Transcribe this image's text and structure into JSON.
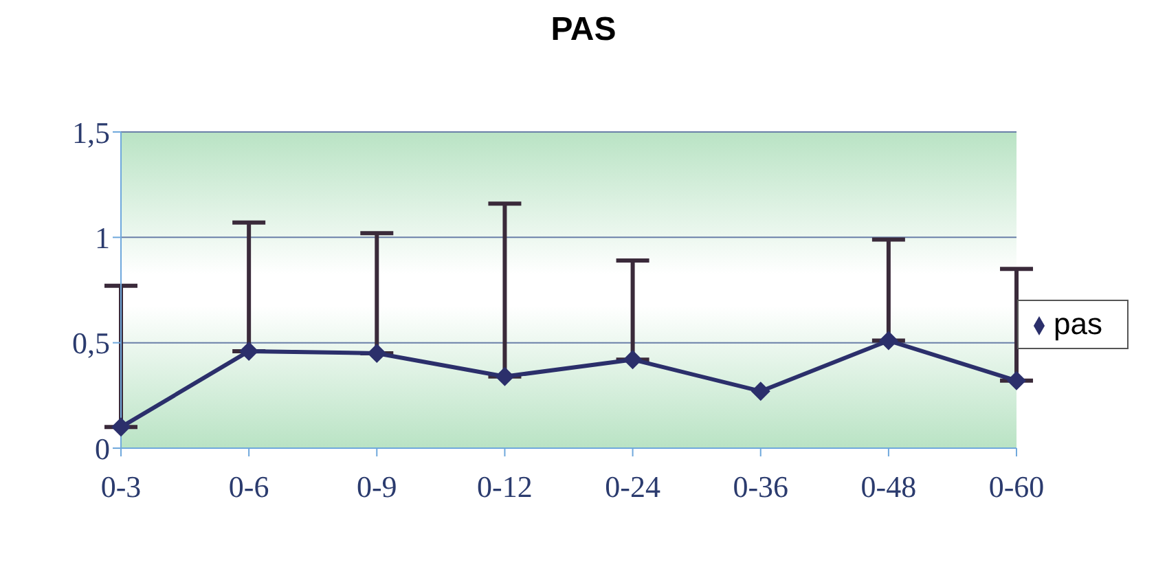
{
  "chart_data": {
    "type": "line",
    "title": "PAS",
    "categories": [
      "0-3",
      "0-6",
      "0-9",
      "0-12",
      "0-24",
      "0-36",
      "0-48",
      "0-60"
    ],
    "series": [
      {
        "name": "pas",
        "color": "#2b2f6b",
        "values": [
          0.1,
          0.46,
          0.45,
          0.34,
          0.42,
          0.27,
          0.51,
          0.32
        ],
        "errors": [
          [
            0.1,
            0.77
          ],
          [
            0.46,
            1.07
          ],
          [
            0.45,
            1.02
          ],
          [
            0.34,
            1.16
          ],
          [
            0.42,
            0.89
          ],
          null,
          [
            0.51,
            0.99
          ],
          [
            0.32,
            0.85
          ]
        ]
      }
    ],
    "ylim": [
      0,
      1.5
    ],
    "yticks": [
      0,
      {
        "value": 0.5,
        "label": "0,5"
      },
      1,
      {
        "value": 1.5,
        "label": "1,5"
      }
    ],
    "grid": "y",
    "legend": "right",
    "marker": "diamond",
    "line_style": "solid"
  }
}
